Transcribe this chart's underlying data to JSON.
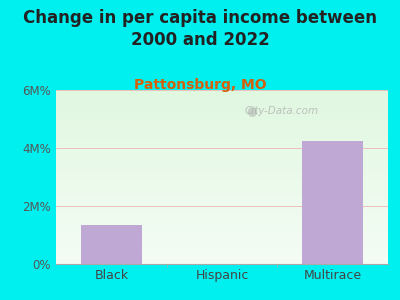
{
  "title": "Change in per capita income between\n2000 and 2022",
  "subtitle": "Pattonsburg, MO",
  "categories": [
    "Black",
    "Hispanic",
    "Multirace"
  ],
  "values": [
    1.35,
    0,
    4.25
  ],
  "bar_color": "#c0a8d4",
  "title_fontsize": 12,
  "subtitle_fontsize": 10,
  "subtitle_color": "#d4600a",
  "title_color": "#222222",
  "background_color": "#00f0f0",
  "ylim": [
    0,
    6
  ],
  "ytick_labels": [
    "0%",
    "2M%",
    "4M%",
    "6M%"
  ],
  "ytick_vals": [
    0,
    2,
    4,
    6
  ],
  "grid_color": "#f0b0b0",
  "watermark": "City-Data.com"
}
